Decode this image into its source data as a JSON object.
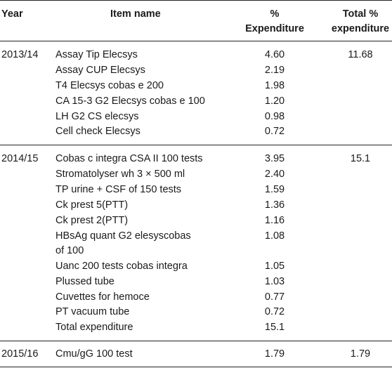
{
  "header": {
    "year": "Year",
    "item_name": "Item name",
    "pct_line1": "%",
    "pct_line2": "Expenditure",
    "total_line1": "Total %",
    "total_line2": "expenditure"
  },
  "groups": [
    {
      "year": "2013/14",
      "total": "11.68",
      "rows": [
        {
          "item": "Assay Tip Elecsys",
          "pct": "4.60"
        },
        {
          "item": "Assay CUP Elecsys",
          "pct": "2.19"
        },
        {
          "item": "T4 Elecsys cobas e 200",
          "pct": "1.98"
        },
        {
          "item": "CA 15-3 G2 Elecsys cobas e 100",
          "pct": "1.20"
        },
        {
          "item": "LH G2 CS elecsys",
          "pct": "0.98"
        },
        {
          "item": "Cell check Elecsys",
          "pct": "0.72"
        }
      ]
    },
    {
      "year": "2014/15",
      "total": "15.1",
      "rows": [
        {
          "item": "Cobas c integra CSA II 100 tests",
          "pct": "3.95"
        },
        {
          "item": "Stromatolyser wh 3 × 500 ml",
          "pct": "2.40"
        },
        {
          "item": "TP urine + CSF of 150 tests",
          "pct": "1.59"
        },
        {
          "item": "Ck prest 5(PTT)",
          "pct": "1.36"
        },
        {
          "item": "Ck prest 2(PTT)",
          "pct": "1.16"
        },
        {
          "item": "HBsAg quant G2 elesyscobas",
          "item_line2": "of 100",
          "pct": "1.08"
        },
        {
          "item": "Uanc 200 tests cobas integra",
          "pct": "1.05"
        },
        {
          "item": "Plussed tube",
          "pct": "1.03"
        },
        {
          "item": "Cuvettes for hemoce",
          "pct": "0.77"
        },
        {
          "item": "PT vacuum tube",
          "pct": "0.72"
        },
        {
          "item": "Total expenditure",
          "pct": "15.1"
        }
      ]
    },
    {
      "year": "2015/16",
      "total": "1.79",
      "rows": [
        {
          "item": "Cmu/gG 100 test",
          "pct": "1.79"
        }
      ]
    }
  ]
}
